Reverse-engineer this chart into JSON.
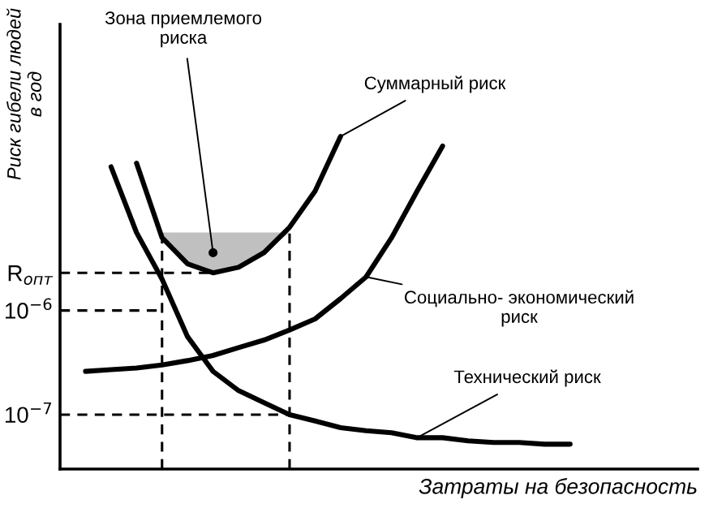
{
  "chart_data": {
    "type": "line",
    "xlabel": "Затраты на безопасность",
    "ylabel": "Риск гибели людей\nв год",
    "log": "y",
    "ylim": [
      3e-08,
      0.00056
    ],
    "yticks": [
      {
        "value": 1e-07,
        "label": "10$^{−7}$"
      },
      {
        "value": 1e-06,
        "label": "10$^{−6}$"
      },
      {
        "value": 2.3e-06,
        "label": "R$_{опт}$"
      }
    ],
    "tick_labels": "y",
    "grid": false,
    "legend": false,
    "marker": "none",
    "categories": [
      null,
      null,
      null,
      null,
      null,
      null,
      null,
      null,
      null,
      null,
      null,
      null,
      null,
      null,
      null,
      null,
      null,
      null,
      null,
      null,
      null,
      null,
      null,
      null,
      null
    ],
    "series": [
      {
        "color": "#000000",
        "values": [
          null,
          null,
          2.4e-05,
          5.6e-06,
          2e-06,
          5.6e-07,
          2.6e-07,
          1.7e-07,
          1.3e-07,
          1e-07,
          8.7e-08,
          7.5e-08,
          7e-08,
          6.7e-08,
          6e-08,
          6e-08,
          5.6e-08,
          5.4e-08,
          5.4e-08,
          5.2e-08,
          5.2e-08,
          null,
          null,
          null,
          null
        ]
      },
      {
        "color": "#000000",
        "values": [
          null,
          2.6e-07,
          2.7e-07,
          2.8e-07,
          3e-07,
          3.3e-07,
          3.7e-07,
          4.4e-07,
          5.2e-07,
          6.5e-07,
          8.3e-07,
          1.3e-06,
          2.1e-06,
          5e-06,
          1.4e-05,
          3.8e-05,
          null,
          null,
          null,
          null,
          null,
          null,
          null,
          null,
          null
        ]
      },
      {
        "color": "#000000",
        "values": [
          null,
          null,
          null,
          2.6e-05,
          5e-06,
          2.8e-06,
          2.3e-06,
          2.6e-06,
          3.6e-06,
          6.3e-06,
          1.4e-05,
          4.7e-05,
          null,
          null,
          null,
          null,
          null,
          null,
          null,
          null,
          null,
          null,
          null,
          null,
          null
        ],
        "lower": [
          null,
          null,
          null,
          null,
          5e-06,
          2.8e-06,
          2.3e-06,
          2.6e-06,
          3.6e-06,
          5.6e-06,
          null,
          null,
          null,
          null,
          null,
          null,
          null,
          null,
          null,
          null,
          null,
          null,
          null,
          null,
          null
        ],
        "upper": [
          null,
          null,
          null,
          null,
          5.6e-06,
          5.6e-06,
          5.6e-06,
          5.6e-06,
          5.6e-06,
          5.6e-06,
          null,
          null,
          null,
          null,
          null,
          null,
          null,
          null,
          null,
          null,
          null,
          null,
          null,
          null,
          null
        ]
      },
      {
        "color": "#000000",
        "line_style": "dashed",
        "values": [
          2.3e-06,
          2.3e-06,
          2.3e-06,
          2.3e-06,
          2.3e-06,
          2.3e-06,
          2.3e-06,
          null,
          null,
          null,
          null,
          null,
          null,
          null,
          null,
          null,
          null,
          null,
          null,
          null,
          null,
          null,
          null,
          null,
          null
        ]
      },
      {
        "color": "#000000",
        "line_style": "dashed",
        "values": [
          1e-06,
          1e-06,
          1e-06,
          1e-06,
          1e-06,
          null,
          null,
          null,
          null,
          null,
          null,
          null,
          null,
          null,
          null,
          null,
          null,
          null,
          null,
          null,
          null,
          null,
          null,
          null,
          null
        ]
      },
      {
        "color": "#000000",
        "line_style": "dashed",
        "values": [
          1e-07,
          1e-07,
          1e-07,
          1e-07,
          1e-07,
          1e-07,
          1e-07,
          1e-07,
          1e-07,
          1e-07,
          null,
          null,
          null,
          null,
          null,
          null,
          null,
          null,
          null,
          null,
          null,
          null,
          null,
          null,
          null
        ]
      }
    ],
    "annotations": [
      "Зона приемлемого\nриска",
      "Суммарный риск",
      "Социально- экономический\nриск",
      "Технический риск"
    ]
  }
}
